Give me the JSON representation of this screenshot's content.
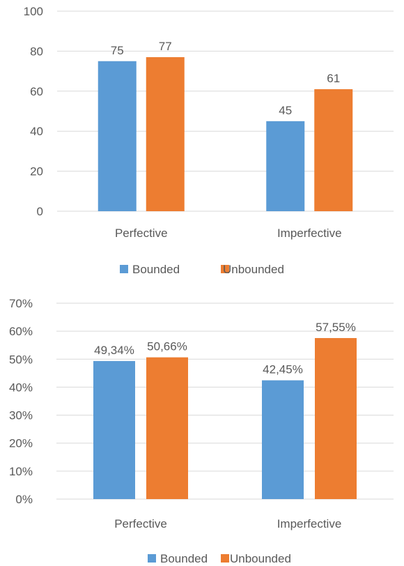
{
  "chart_data": [
    {
      "type": "bar",
      "categories": [
        "Perfective",
        "Imperfective"
      ],
      "series": [
        {
          "name": "Bounded",
          "values": [
            75,
            45
          ],
          "labels": [
            "75",
            "45"
          ],
          "color": "#5B9BD5"
        },
        {
          "name": "Unbounded",
          "values": [
            77,
            61
          ],
          "labels": [
            "77",
            "61"
          ],
          "color": "#ED7D31"
        }
      ],
      "yticks": [
        "0",
        "20",
        "40",
        "60",
        "80",
        "100"
      ],
      "ylim": [
        0,
        100
      ],
      "grid": true,
      "legend": "bottom"
    },
    {
      "type": "bar",
      "categories": [
        "Perfective",
        "Imperfective"
      ],
      "series": [
        {
          "name": "Bounded",
          "values": [
            49.34,
            42.45
          ],
          "labels": [
            "49,34%",
            "42,45%"
          ],
          "color": "#5B9BD5"
        },
        {
          "name": "Unbounded",
          "values": [
            50.66,
            57.55
          ],
          "labels": [
            "50,66%",
            "57,55%"
          ],
          "color": "#ED7D31"
        }
      ],
      "yticks": [
        "0%",
        "10%",
        "20%",
        "30%",
        "40%",
        "50%",
        "60%",
        "70%"
      ],
      "ylim": [
        0,
        70
      ],
      "grid": true,
      "legend": "bottom"
    }
  ]
}
